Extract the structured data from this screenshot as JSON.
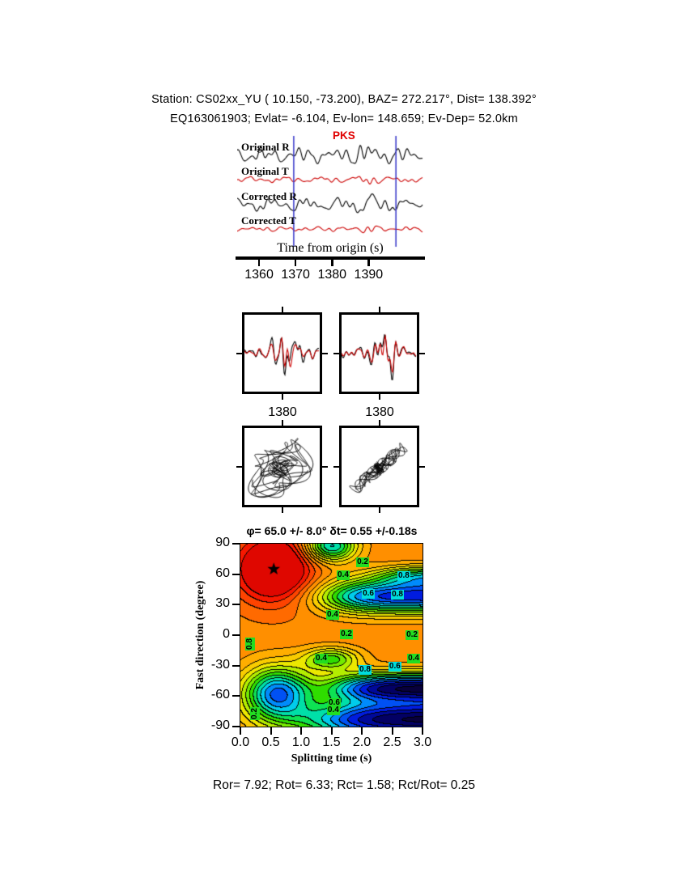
{
  "header": {
    "line1": "Station: CS02xx_YU (  10.150,  -73.200), BAZ=  272.217°, Dist=  138.392°",
    "line2": "EQ163061903; Evlat=  -6.104, Ev-lon=  148.659; Ev-Dep=  52.0km"
  },
  "waveform_panel": {
    "phase_label": "PKS",
    "phase_color": "#e00000",
    "window_color": "#4040cc",
    "trace_labels": [
      "Original R",
      "Original T",
      "Corrected R",
      "Corrected T"
    ],
    "trace_colors": [
      "#000000",
      "#cc0000",
      "#000000",
      "#cc0000"
    ],
    "axis_label": "Time from origin (s)",
    "time_ticks": [
      "1360",
      "1370",
      "1380",
      "1390"
    ],
    "time_range": [
      1354,
      1405
    ],
    "window_s": [
      1369.5,
      1397.5
    ]
  },
  "zoom_panels": {
    "left_tick": "1380",
    "right_tick": "1380"
  },
  "contour": {
    "title": "φ= 65.0 +/- 8.0° δt= 0.55 +/-0.18s",
    "xlabel": "Splitting time (s)",
    "ylabel": "Fast direction (degree)",
    "xticks": [
      "0.0",
      "0.5",
      "1.0",
      "1.5",
      "2.0",
      "2.5",
      "3.0"
    ],
    "yticks": [
      "90",
      "60",
      "30",
      "0",
      "-30",
      "-60",
      "-90"
    ],
    "xlim": [
      0,
      3
    ],
    "ylim": [
      -90,
      90
    ],
    "star": {
      "dt": 0.55,
      "phi": 65
    },
    "labels": [
      {
        "v": "0.2",
        "fx": 0.676,
        "fy": 0.108,
        "c": "#22dd22",
        "rot": 0
      },
      {
        "v": "0.4",
        "fx": 0.569,
        "fy": 0.176,
        "c": "#22dd22",
        "rot": 0
      },
      {
        "v": "0.8",
        "fx": 0.902,
        "fy": 0.18,
        "c": "#00dddd",
        "rot": 0
      },
      {
        "v": "0.6",
        "fx": 0.707,
        "fy": 0.279,
        "c": "#00dddd",
        "rot": 0
      },
      {
        "v": "0.8",
        "fx": 0.867,
        "fy": 0.284,
        "c": "#00dddd",
        "rot": 0
      },
      {
        "v": "0.4",
        "fx": 0.511,
        "fy": 0.396,
        "c": "#22dd22",
        "rot": 0
      },
      {
        "v": "0.2",
        "fx": 0.587,
        "fy": 0.5,
        "c": "#22dd22",
        "rot": 0
      },
      {
        "v": "0.2",
        "fx": 0.947,
        "fy": 0.505,
        "c": "#22dd22",
        "rot": 0
      },
      {
        "v": "0.8",
        "fx": 0.058,
        "fy": 0.554,
        "c": "#22dd22",
        "rot": 1
      },
      {
        "v": "0.4",
        "fx": 0.449,
        "fy": 0.631,
        "c": "#22dd22",
        "rot": 0
      },
      {
        "v": "0.8",
        "fx": 0.689,
        "fy": 0.694,
        "c": "#00dddd",
        "rot": 0
      },
      {
        "v": "0.6",
        "fx": 0.853,
        "fy": 0.676,
        "c": "#00dddd",
        "rot": 0
      },
      {
        "v": "0.4",
        "fx": 0.956,
        "fy": 0.631,
        "c": "#22dd22",
        "rot": 0
      },
      {
        "v": "0.6",
        "fx": 0.52,
        "fy": 0.878,
        "c": "#22dd22",
        "rot": 0
      },
      {
        "v": "0.4",
        "fx": 0.515,
        "fy": 0.915,
        "c": "#22dd22",
        "rot": 0
      },
      {
        "v": "0.2",
        "fx": 0.084,
        "fy": 0.932,
        "c": "#22dd22",
        "rot": 1
      }
    ]
  },
  "footer": {
    "text": "Ror= 7.92; Rot= 6.33; Rct= 1.58; Rct/Rot= 0.25"
  },
  "chart_data": [
    {
      "type": "line",
      "name": "seismogram-traces",
      "traces": [
        "Original R",
        "Original T",
        "Corrected R",
        "Corrected T"
      ],
      "trace_colors": [
        "black",
        "red",
        "black",
        "red"
      ],
      "xlabel": "Time from origin (s)",
      "xticks": [
        1360,
        1370,
        1380,
        1390
      ],
      "xlim": [
        1354,
        1405
      ],
      "phase_pick": "PKS",
      "analysis_window_s": [
        1369.5,
        1397.5
      ]
    },
    {
      "type": "line",
      "name": "windowed-components-original",
      "xticks": [
        1380
      ],
      "series": [
        "black",
        "red"
      ]
    },
    {
      "type": "line",
      "name": "windowed-components-corrected",
      "xticks": [
        1380
      ],
      "series": [
        "black",
        "red"
      ]
    },
    {
      "type": "scatter",
      "name": "particle-motion-original",
      "description": "elliptical particle motion loops"
    },
    {
      "type": "scatter",
      "name": "particle-motion-corrected",
      "description": "linearized diagonal particle motion"
    },
    {
      "type": "heatmap",
      "name": "splitting-error-surface",
      "title": "φ= 65.0 +/- 8.0° δt= 0.55 +/-0.18s",
      "xlabel": "Splitting time (s)",
      "ylabel": "Fast direction (degree)",
      "xlim": [
        0,
        3
      ],
      "ylim": [
        -90,
        90
      ],
      "xticks": [
        0.0,
        0.5,
        1.0,
        1.5,
        2.0,
        2.5,
        3.0
      ],
      "yticks": [
        90,
        60,
        30,
        0,
        -30,
        -60,
        -90
      ],
      "best_fit": {
        "fast_direction_deg": 65.0,
        "fast_direction_err_deg": 8.0,
        "delay_time_s": 0.55,
        "delay_time_err_s": 0.18
      },
      "labeled_contours": [
        0.2,
        0.4,
        0.6,
        0.8
      ],
      "star_marker": {
        "x": 0.55,
        "y": 65
      }
    },
    {
      "type": "table",
      "name": "quality-statistics",
      "values": {
        "Ror": 7.92,
        "Rot": 6.33,
        "Rct": 1.58,
        "Rct/Rot": 0.25
      }
    }
  ]
}
